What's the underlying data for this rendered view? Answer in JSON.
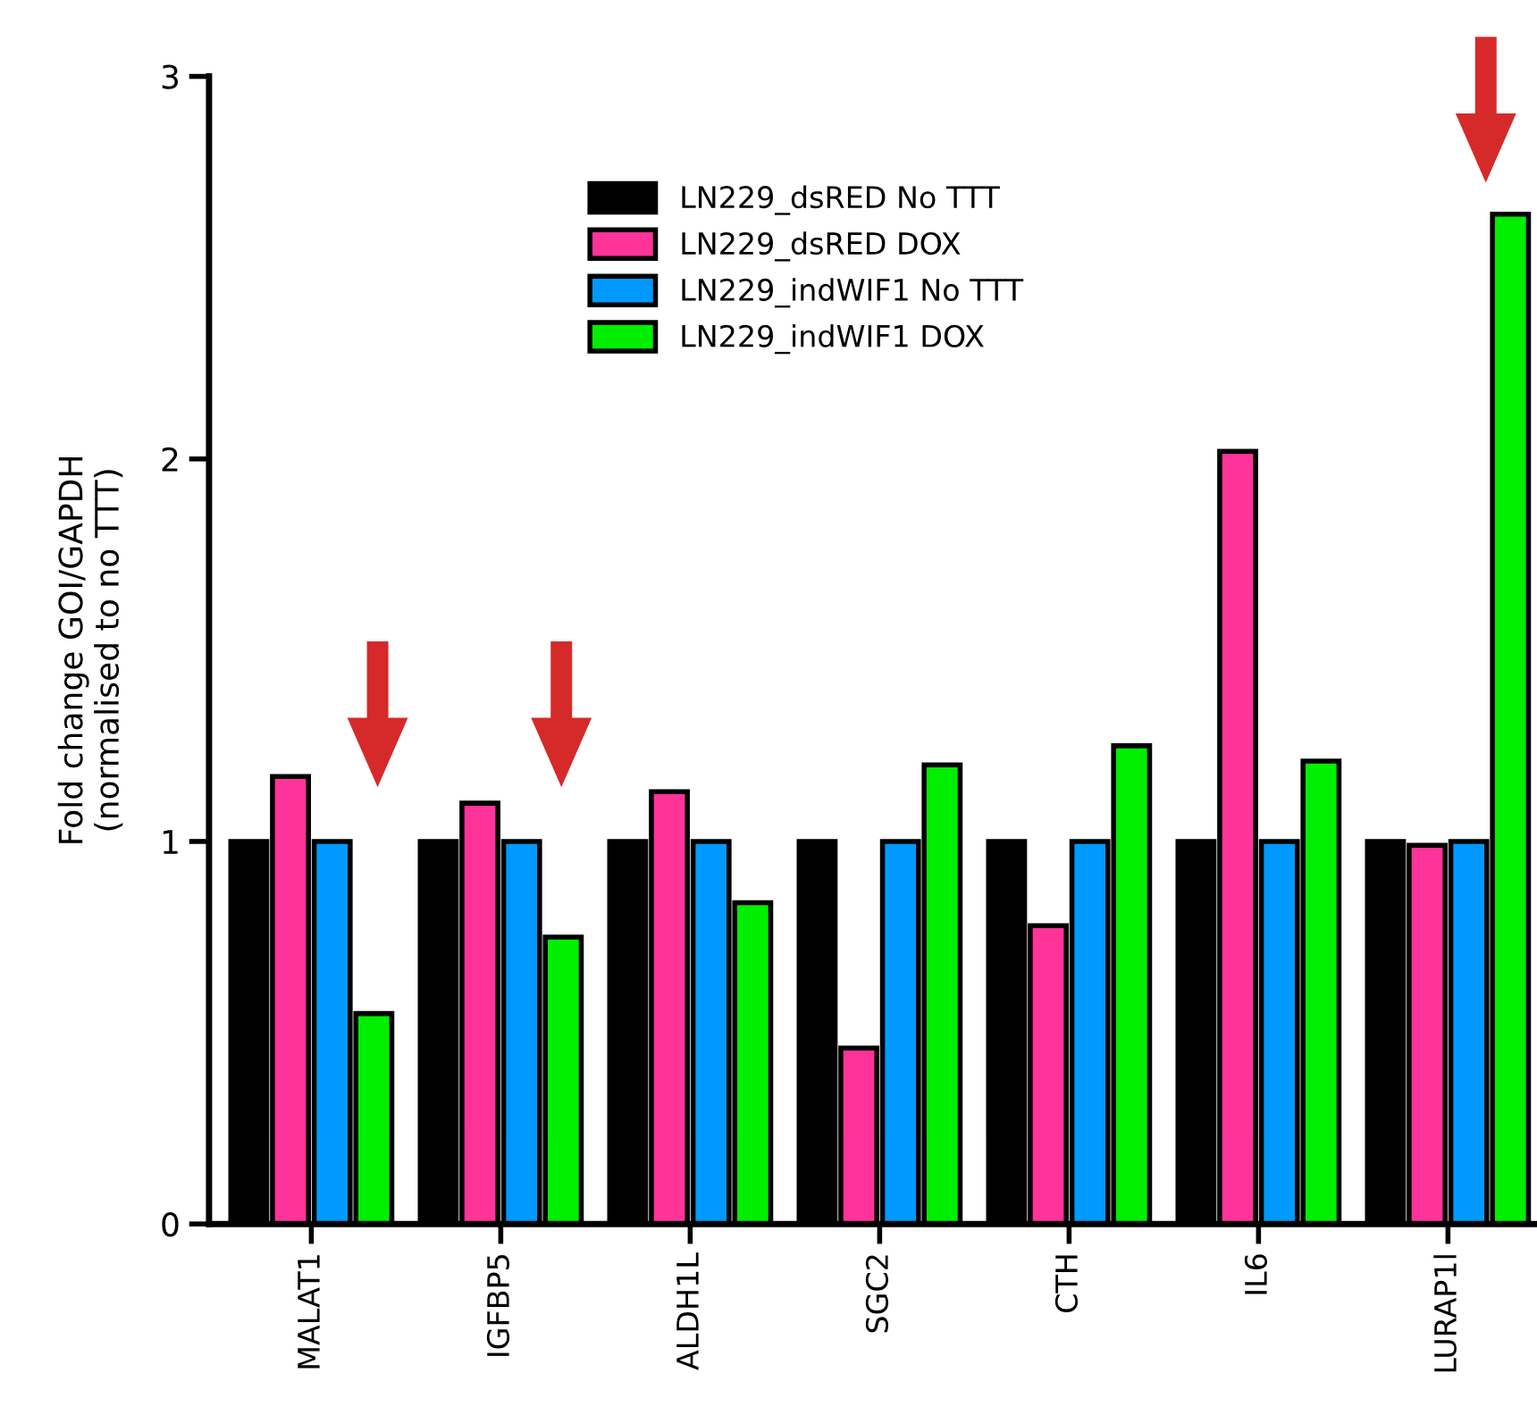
{
  "chart_data": {
    "type": "bar",
    "ylabel": "Fold change GOI/GAPDH\n(normalised to no TTT)",
    "categories": [
      "MALAT1",
      "IGFBP5",
      "ALDH1L",
      "SGC2",
      "CTH",
      "IL6",
      "LURAP1l"
    ],
    "series": [
      {
        "name": "LN229_dsRED No TTT",
        "color": "#000000",
        "values": [
          1,
          1,
          1,
          1,
          1,
          1,
          1
        ]
      },
      {
        "name": "LN229_dsRED DOX",
        "color": "#ff3399",
        "values": [
          1.17,
          1.1,
          1.13,
          0.46,
          0.78,
          2.02,
          0.99
        ]
      },
      {
        "name": "LN229_indWIF1 No TTT",
        "color": "#0099ff",
        "values": [
          1,
          1,
          1,
          1,
          1,
          1,
          1
        ]
      },
      {
        "name": "LN229_indWIF1 DOX",
        "color": "#00ee00",
        "values": [
          0.55,
          0.75,
          0.84,
          1.2,
          1.25,
          1.21,
          2.64
        ]
      }
    ],
    "ylim": [
      0,
      3
    ],
    "yticks": [
      0,
      1,
      2,
      3
    ],
    "grid": false,
    "legend": "top"
  }
}
